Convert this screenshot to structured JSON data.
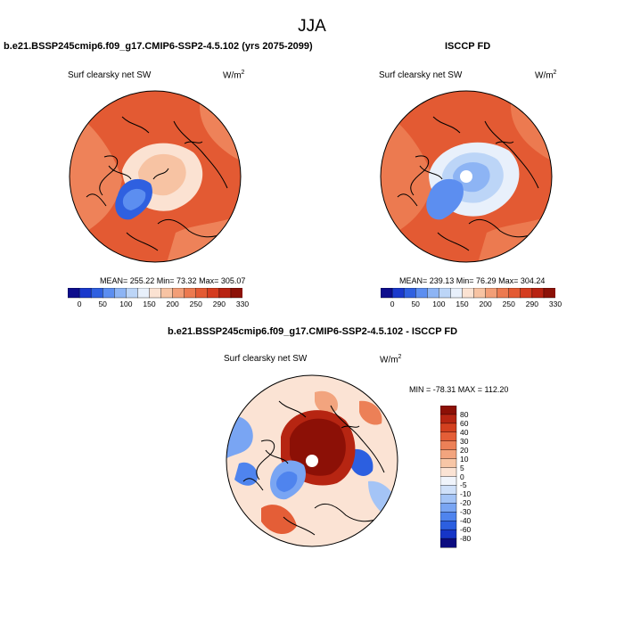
{
  "season": "JJA",
  "colors": {
    "base": [
      "#0d0d8c",
      "#1a39cc",
      "#2f60e0",
      "#5c8ef0",
      "#8db4f4",
      "#bcd5f7",
      "#e8f0fb",
      "#fbe2d2",
      "#f7c3a3",
      "#f29e77",
      "#ec7a50",
      "#e35a33",
      "#d43c1f",
      "#b82312",
      "#8c1208"
    ],
    "diff": [
      "#0c0c80",
      "#1635c7",
      "#2c5fe0",
      "#4f84ee",
      "#79a5f3",
      "#a4c4f6",
      "#cfe0f9",
      "#f0f4fb",
      "#fbe3d4",
      "#f7c6a6",
      "#f2a47e",
      "#ec8057",
      "#e45e37",
      "#d3401f",
      "#b62512",
      "#8c1006"
    ]
  },
  "panels": [
    {
      "title": "b.e21.BSSP245cmip6.f09_g17.CMIP6-SSP2-4.5.102 (yrs 2075-2099)",
      "variable": "Surf clearsky net SW",
      "units_base": "W/m",
      "units_exp": "2",
      "stats": "MEAN= 255.22   Min=  73.32   Max= 305.07",
      "colorbar_labels": [
        "0",
        "50",
        "100",
        "150",
        "200",
        "250",
        "290",
        "330"
      ],
      "fields": {
        "ocean": "#e35a33",
        "land": "#ee8259",
        "arctic": "#fbe2d2",
        "greenland": "#2f60e0"
      }
    },
    {
      "title": "ISCCP FD",
      "variable": "Surf clearsky net SW",
      "units_base": "W/m",
      "units_exp": "2",
      "stats": "MEAN= 239.13   Min=  76.29   Max= 304.24",
      "colorbar_labels": [
        "0",
        "50",
        "100",
        "150",
        "200",
        "250",
        "290",
        "330"
      ],
      "fields": {
        "ocean": "#e35a33",
        "land": "#ec7a50",
        "arctic": "#bcd5f7",
        "greenland": "#5c8ef0"
      }
    },
    {
      "title": "b.e21.BSSP245cmip6.f09_g17.CMIP6-SSP2-4.5.102 - ISCCP FD",
      "variable": "Surf clearsky net SW",
      "units_base": "W/m",
      "units_exp": "2",
      "stats": "MIN = -78.31  MAX = 112.20",
      "colorbar_labels": [
        "80",
        "60",
        "40",
        "30",
        "20",
        "10",
        "5",
        "0",
        "-5",
        "-10",
        "-20",
        "-30",
        "-40",
        "-60",
        "-80"
      ],
      "fields": {
        "ocean": "#fbe3d4",
        "land": "#f7c6a6",
        "arctic": "#8c1006",
        "greenland": "#f2a47e"
      }
    }
  ]
}
